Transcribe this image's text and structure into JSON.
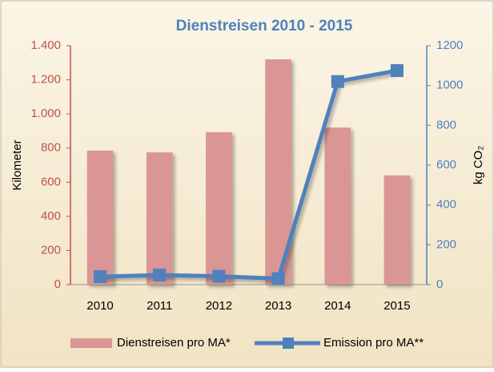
{
  "chart_data": {
    "type": "combo",
    "title": "Dienstreisen 2010 - 2015",
    "y_label": "Kilometer",
    "y2_label": "kg CO₂",
    "categories": [
      "2010",
      "2011",
      "2012",
      "2013",
      "2014",
      "2015"
    ],
    "series": [
      {
        "name": "Dienstreisen pro MA*",
        "type": "bar",
        "color": "#d99694",
        "values": [
          785,
          775,
          893,
          1320,
          920,
          640
        ]
      },
      {
        "name": "Emission pro MA**",
        "type": "line",
        "axis": "y2",
        "color": "#4f81bd",
        "values": [
          40,
          48,
          42,
          30,
          1020,
          1075
        ]
      }
    ],
    "ylim": [
      0,
      1400
    ],
    "yticks": [
      0,
      200,
      400,
      600,
      800,
      {
        "value": 1000,
        "label": "1.000"
      },
      {
        "value": 1200,
        "label": "1.200"
      },
      {
        "value": 1400,
        "label": "1.400"
      }
    ],
    "y2lim": [
      0,
      1200
    ],
    "y2ticks": [
      0,
      200,
      400,
      600,
      800,
      1000,
      1200
    ],
    "legend": "bottom"
  }
}
